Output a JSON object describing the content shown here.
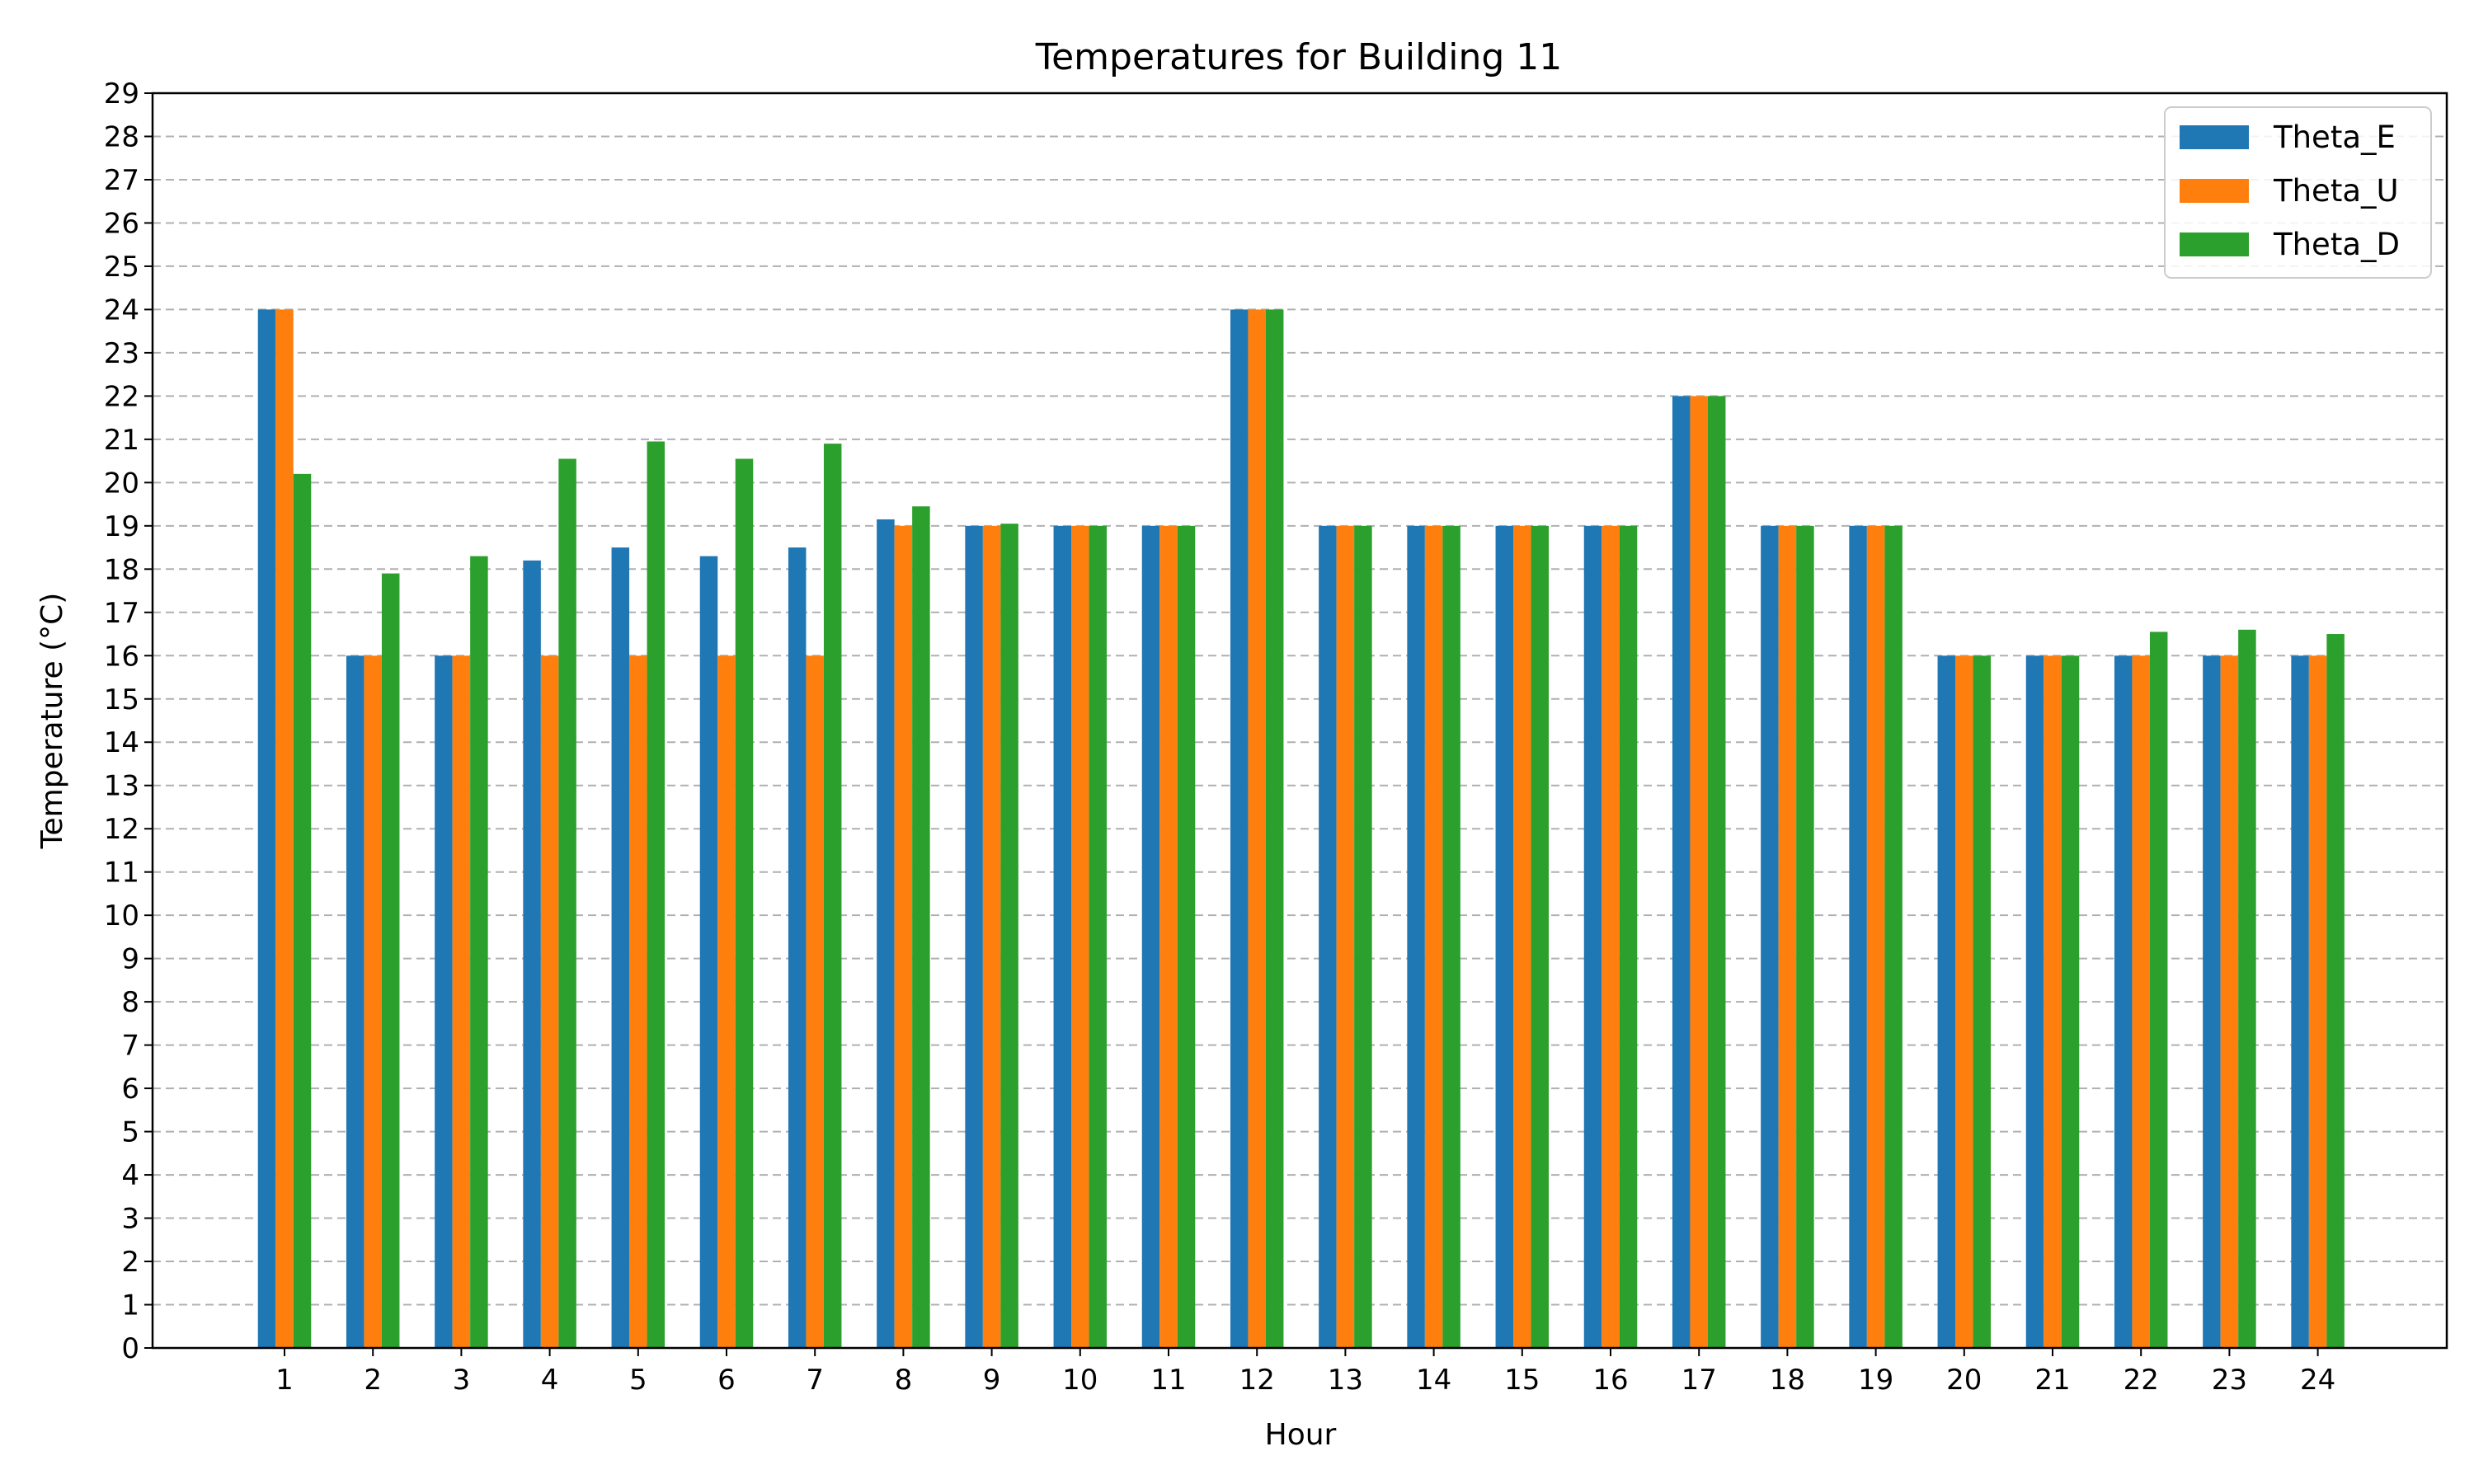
{
  "chart_data": {
    "type": "bar",
    "title": "Temperatures for Building 11",
    "xlabel": "Hour",
    "ylabel": "Temperature (°C)",
    "categories": [
      "1",
      "2",
      "3",
      "4",
      "5",
      "6",
      "7",
      "8",
      "9",
      "10",
      "11",
      "12",
      "13",
      "14",
      "15",
      "16",
      "17",
      "18",
      "19",
      "20",
      "21",
      "22",
      "23",
      "24"
    ],
    "ylim": [
      0,
      29
    ],
    "yticks": [
      0,
      1,
      2,
      3,
      4,
      5,
      6,
      7,
      8,
      9,
      10,
      11,
      12,
      13,
      14,
      15,
      16,
      17,
      18,
      19,
      20,
      21,
      22,
      23,
      24,
      25,
      26,
      27,
      28,
      29
    ],
    "grid": "horizontal dashed",
    "legend_position": "top-right",
    "series": [
      {
        "name": "Theta_E",
        "color": "#1f77b4",
        "values": [
          24,
          16,
          16,
          18.2,
          18.5,
          18.3,
          18.5,
          19.15,
          19,
          19,
          19,
          24,
          19,
          19,
          19,
          19,
          22,
          19,
          19,
          16,
          16,
          16,
          16,
          16
        ]
      },
      {
        "name": "Theta_U",
        "color": "#ff7f0e",
        "values": [
          24,
          16,
          16,
          16,
          16,
          16,
          16,
          19,
          19,
          19,
          19,
          24,
          19,
          19,
          19,
          19,
          22,
          19,
          19,
          16,
          16,
          16,
          16,
          16
        ]
      },
      {
        "name": "Theta_D",
        "color": "#2ca02c",
        "values": [
          20.2,
          17.9,
          18.3,
          20.55,
          20.95,
          20.55,
          20.9,
          19.45,
          19.05,
          19,
          19,
          24,
          19,
          19,
          19,
          19,
          22,
          19,
          19,
          16,
          16,
          16.55,
          16.6,
          16.5
        ]
      }
    ]
  }
}
